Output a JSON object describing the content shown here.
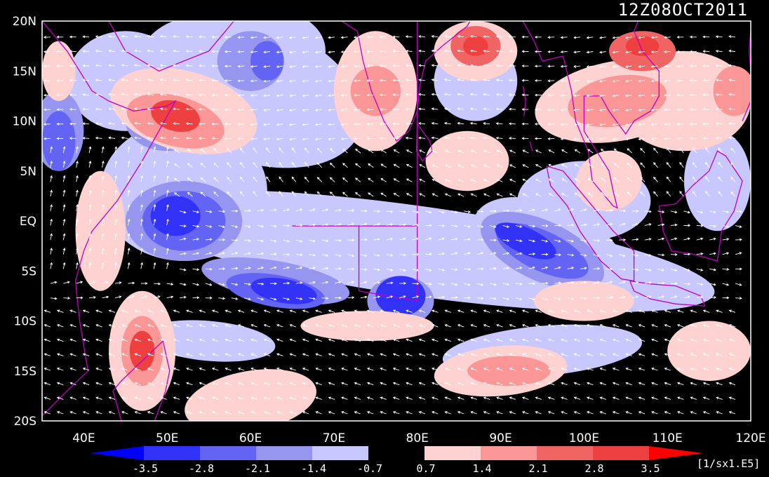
{
  "title": "12Z08OCT2011",
  "map": {
    "lon_range": [
      35,
      120
    ],
    "lat_range": [
      -20,
      20
    ],
    "lat_labels": [
      "20N",
      "15N",
      "10N",
      "5N",
      "EQ",
      "5S",
      "10S",
      "15S",
      "20S"
    ],
    "lon_labels": [
      "40E",
      "50E",
      "60E",
      "70E",
      "80E",
      "90E",
      "100E",
      "110E",
      "120E"
    ],
    "coastline_color": "#c000c0",
    "vector_color": "#ffffff",
    "background_color": "#000000"
  },
  "colorbar": {
    "labels": [
      "-3.5",
      "-2.8",
      "-2.1",
      "-1.4",
      "-0.7",
      "0.7",
      "1.4",
      "2.1",
      "2.8",
      "3.5"
    ],
    "colors": [
      "#0000ff",
      "#3232f8",
      "#6464f4",
      "#9696f0",
      "#c8c8ff",
      "#000000",
      "#ffd2d2",
      "#fa9696",
      "#f06464",
      "#ee4040",
      "#ff0000"
    ],
    "units": "[1/sx1.E5]"
  }
}
